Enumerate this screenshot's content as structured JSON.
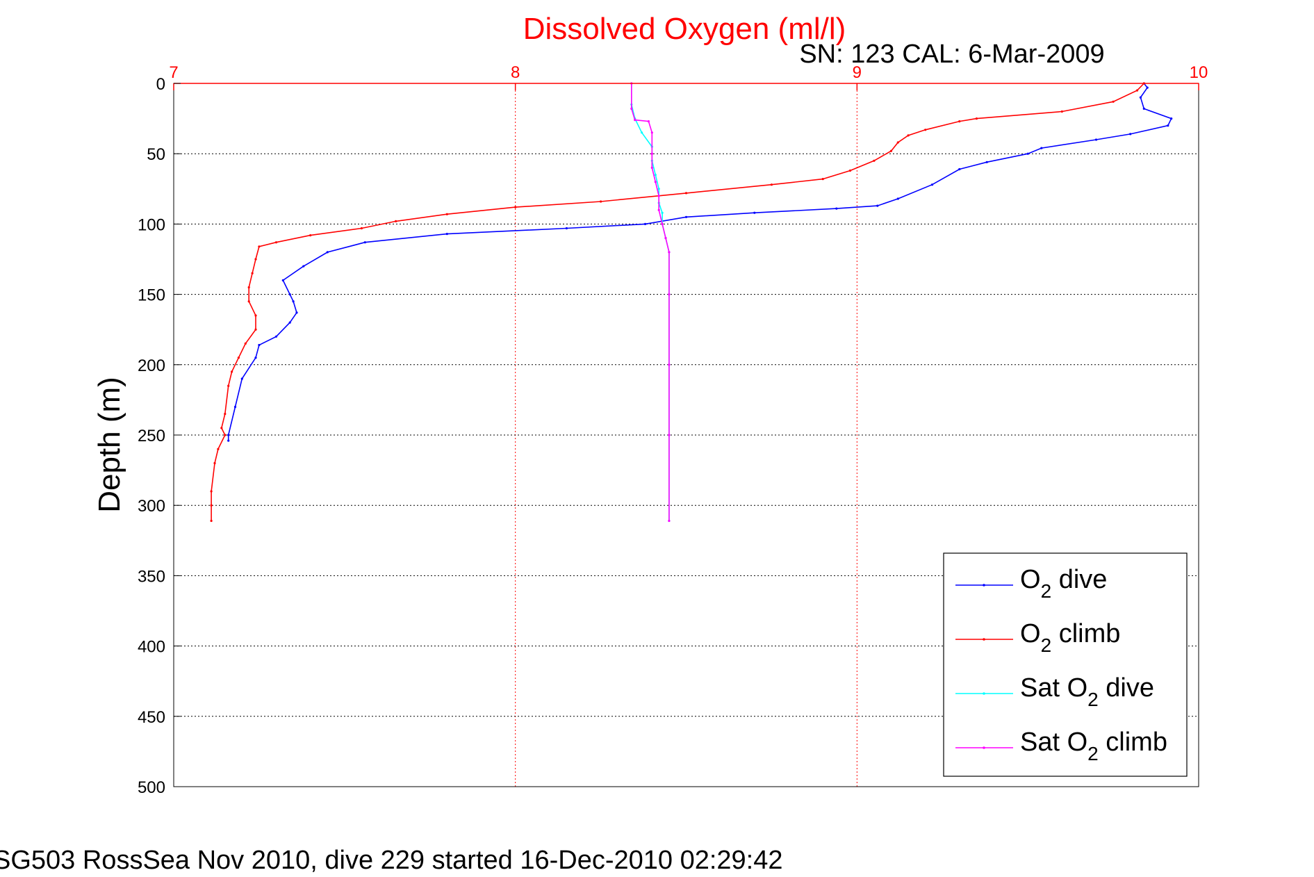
{
  "chart_data": {
    "type": "line",
    "title": "Dissolved Oxygen (ml/l)",
    "subtitle": "SN: 123  CAL: 6-Mar-2009",
    "ylabel": "Depth (m)",
    "footer": "SG503 RossSea Nov 2010, dive 229 started 16-Dec-2010 02:29:42",
    "xlim": [
      7,
      10
    ],
    "ylim": [
      0,
      500
    ],
    "y_reversed": true,
    "x_axis_position": "top",
    "x_ticks": [
      "7",
      "8",
      "9",
      "10"
    ],
    "y_ticks": [
      "0",
      "50",
      "100",
      "150",
      "200",
      "250",
      "300",
      "350",
      "400",
      "450",
      "500"
    ],
    "x_grid": true,
    "y_grid": true,
    "legend_position": "bottom-right",
    "colors": {
      "axis_x": "#ff0000",
      "title": "#ff0000",
      "axis_y": "#000000"
    },
    "series": [
      {
        "name": "O2 dive",
        "label_main": "O",
        "label_sub": "2",
        "label_rest": " dive",
        "color": "#0000ff",
        "points": [
          [
            9.84,
            0
          ],
          [
            9.85,
            3
          ],
          [
            9.83,
            10
          ],
          [
            9.84,
            18
          ],
          [
            9.92,
            25
          ],
          [
            9.91,
            30
          ],
          [
            9.8,
            36
          ],
          [
            9.7,
            40
          ],
          [
            9.54,
            46
          ],
          [
            9.5,
            50
          ],
          [
            9.38,
            56
          ],
          [
            9.3,
            61
          ],
          [
            9.22,
            72
          ],
          [
            9.12,
            82
          ],
          [
            9.06,
            87
          ],
          [
            8.94,
            89
          ],
          [
            8.7,
            92
          ],
          [
            8.5,
            95
          ],
          [
            8.38,
            100
          ],
          [
            8.15,
            103
          ],
          [
            7.8,
            107
          ],
          [
            7.56,
            113
          ],
          [
            7.45,
            120
          ],
          [
            7.38,
            130
          ],
          [
            7.32,
            140
          ],
          [
            7.34,
            150
          ],
          [
            7.35,
            155
          ],
          [
            7.36,
            163
          ],
          [
            7.34,
            170
          ],
          [
            7.3,
            180
          ],
          [
            7.25,
            186
          ],
          [
            7.24,
            195
          ],
          [
            7.2,
            210
          ],
          [
            7.18,
            230
          ],
          [
            7.16,
            250
          ],
          [
            7.16,
            254
          ]
        ]
      },
      {
        "name": "O2 climb",
        "label_main": "O",
        "label_sub": "2",
        "label_rest": " climb",
        "color": "#ff0000",
        "points": [
          [
            9.84,
            0
          ],
          [
            9.82,
            5
          ],
          [
            9.75,
            13
          ],
          [
            9.6,
            20
          ],
          [
            9.35,
            25
          ],
          [
            9.3,
            27
          ],
          [
            9.2,
            33
          ],
          [
            9.15,
            37
          ],
          [
            9.12,
            42
          ],
          [
            9.1,
            48
          ],
          [
            9.05,
            55
          ],
          [
            8.98,
            62
          ],
          [
            8.9,
            68
          ],
          [
            8.75,
            72
          ],
          [
            8.5,
            78
          ],
          [
            8.25,
            84
          ],
          [
            8.0,
            88
          ],
          [
            7.8,
            93
          ],
          [
            7.65,
            98
          ],
          [
            7.55,
            103
          ],
          [
            7.4,
            108
          ],
          [
            7.3,
            113
          ],
          [
            7.25,
            116
          ],
          [
            7.24,
            125
          ],
          [
            7.23,
            135
          ],
          [
            7.22,
            145
          ],
          [
            7.22,
            155
          ],
          [
            7.24,
            165
          ],
          [
            7.24,
            175
          ],
          [
            7.21,
            185
          ],
          [
            7.19,
            195
          ],
          [
            7.17,
            205
          ],
          [
            7.16,
            215
          ],
          [
            7.15,
            235
          ],
          [
            7.14,
            245
          ],
          [
            7.15,
            250
          ],
          [
            7.13,
            260
          ],
          [
            7.12,
            270
          ],
          [
            7.11,
            290
          ],
          [
            7.11,
            300
          ],
          [
            7.11,
            311
          ]
        ]
      },
      {
        "name": "Sat O2 dive",
        "label_main": "Sat O",
        "label_sub": "2",
        "label_rest": " dive",
        "color": "#00ffff",
        "points": [
          [
            8.34,
            0
          ],
          [
            8.34,
            15
          ],
          [
            8.35,
            25
          ],
          [
            8.37,
            35
          ],
          [
            8.4,
            45
          ],
          [
            8.4,
            55
          ],
          [
            8.41,
            65
          ],
          [
            8.42,
            75
          ],
          [
            8.42,
            85
          ],
          [
            8.43,
            92
          ],
          [
            8.43,
            100
          ],
          [
            8.44,
            110
          ],
          [
            8.45,
            120
          ],
          [
            8.45,
            150
          ],
          [
            8.45,
            200
          ],
          [
            8.45,
            250
          ],
          [
            8.45,
            311
          ]
        ]
      },
      {
        "name": "Sat O2 climb",
        "label_main": "Sat O",
        "label_sub": "2",
        "label_rest": " climb",
        "color": "#ff00ff",
        "points": [
          [
            8.34,
            0
          ],
          [
            8.34,
            18
          ],
          [
            8.35,
            26
          ],
          [
            8.39,
            27
          ],
          [
            8.4,
            35
          ],
          [
            8.4,
            50
          ],
          [
            8.4,
            60
          ],
          [
            8.41,
            70
          ],
          [
            8.42,
            80
          ],
          [
            8.42,
            90
          ],
          [
            8.43,
            100
          ],
          [
            8.44,
            110
          ],
          [
            8.45,
            120
          ],
          [
            8.45,
            150
          ],
          [
            8.45,
            200
          ],
          [
            8.45,
            250
          ],
          [
            8.45,
            311
          ]
        ]
      }
    ]
  }
}
